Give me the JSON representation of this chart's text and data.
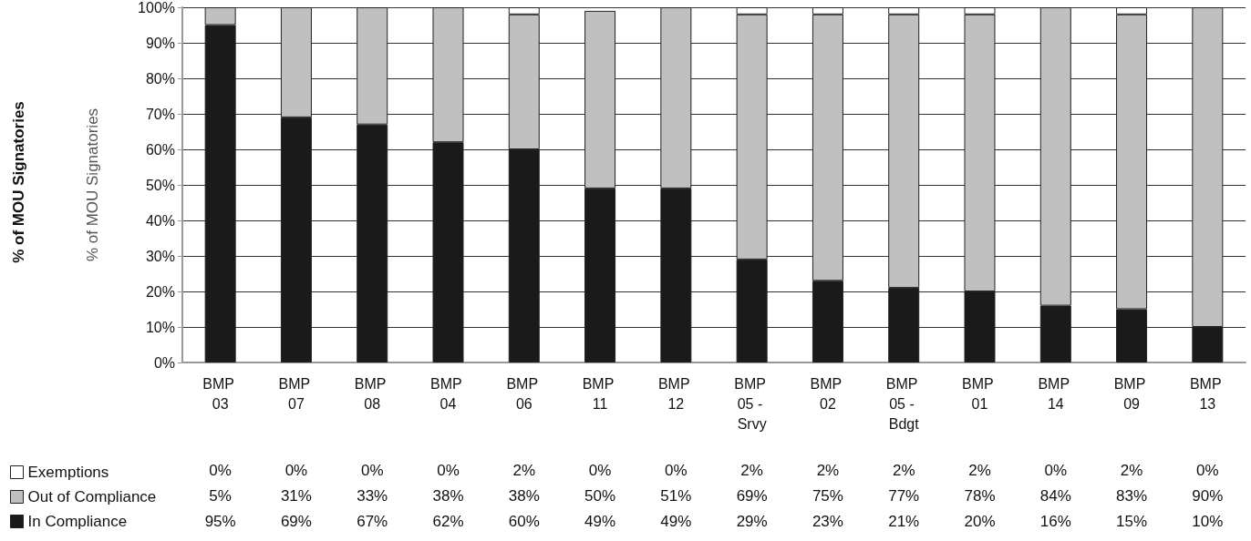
{
  "chart_data": {
    "type": "bar",
    "stacked": true,
    "ylabel": "% of MOU Signatories",
    "annotations": [
      "% of MOU Signatories"
    ],
    "categories": [
      "BMP 03",
      "BMP 07",
      "BMP 08",
      "BMP 04",
      "BMP 06",
      "BMP 11",
      "BMP 12",
      "BMP 05 - Srvy",
      "BMP 02",
      "BMP 05 - Bdgt",
      "BMP 01",
      "BMP 14",
      "BMP 09",
      "BMP 13"
    ],
    "series": [
      {
        "name": "In Compliance",
        "color": "#1a1a1a",
        "values": [
          95,
          69,
          67,
          62,
          60,
          49,
          49,
          29,
          23,
          21,
          20,
          16,
          15,
          10
        ],
        "value_labels": [
          "95%",
          "69%",
          "67%",
          "62%",
          "60%",
          "49%",
          "49%",
          "29%",
          "23%",
          "21%",
          "20%",
          "16%",
          "15%",
          "10%"
        ]
      },
      {
        "name": "Out of Compliance",
        "color": "#c0c0c0",
        "values": [
          5,
          31,
          33,
          38,
          38,
          50,
          51,
          69,
          75,
          77,
          78,
          84,
          83,
          90
        ],
        "value_labels": [
          "5%",
          "31%",
          "33%",
          "38%",
          "38%",
          "50%",
          "51%",
          "69%",
          "75%",
          "77%",
          "78%",
          "84%",
          "83%",
          "90%"
        ]
      },
      {
        "name": "Exemptions",
        "color": "#ffffff",
        "values": [
          0,
          0,
          0,
          0,
          2,
          0,
          0,
          2,
          2,
          2,
          2,
          0,
          2,
          0
        ],
        "value_labels": [
          "0%",
          "0%",
          "0%",
          "0%",
          "2%",
          "0%",
          "0%",
          "2%",
          "2%",
          "2%",
          "2%",
          "0%",
          "2%",
          "0%"
        ]
      }
    ],
    "ylim": [
      0,
      100
    ],
    "yticks": [
      {
        "value": 0,
        "label": "0%"
      },
      {
        "value": 10,
        "label": "10%"
      },
      {
        "value": 20,
        "label": "20%"
      },
      {
        "value": 30,
        "label": "30%"
      },
      {
        "value": 40,
        "label": "40%"
      },
      {
        "value": 50,
        "label": "50%"
      },
      {
        "value": 60,
        "label": "60%"
      },
      {
        "value": 70,
        "label": "70%"
      },
      {
        "value": 80,
        "label": "80%"
      },
      {
        "value": 90,
        "label": "90%"
      },
      {
        "value": 100,
        "label": "100%"
      }
    ],
    "grid": "y",
    "legend": "bottom left"
  }
}
